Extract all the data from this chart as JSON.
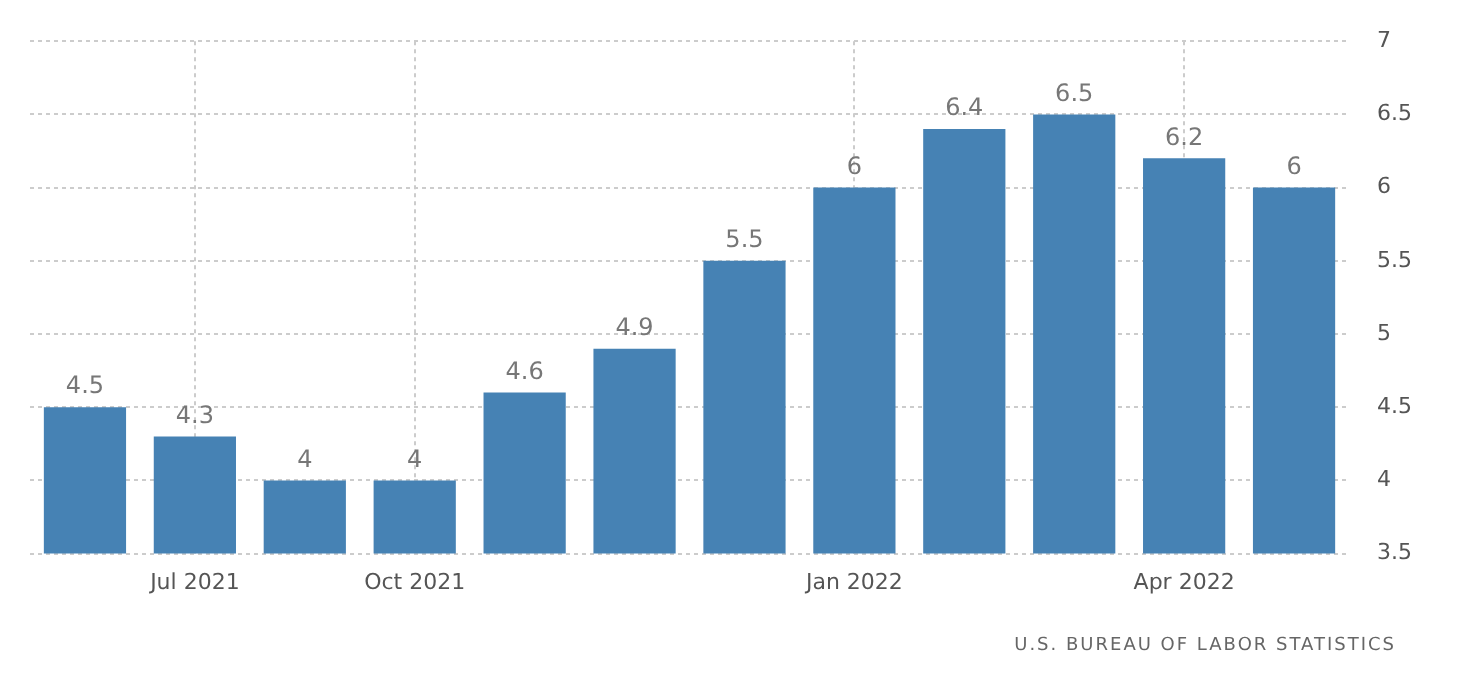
{
  "chart_data": {
    "type": "bar",
    "categories": [
      null,
      "Jul 2021",
      null,
      "Oct 2021",
      null,
      null,
      null,
      "Jan 2022",
      null,
      null,
      "Apr 2022",
      null
    ],
    "values": [
      4.5,
      4.3,
      4,
      4,
      4.6,
      4.9,
      5.5,
      6,
      6.4,
      6.5,
      6.2,
      6
    ],
    "color": "#4682b4",
    "ylim": [
      3.5,
      7
    ],
    "yticks": [
      3.5,
      4,
      4.5,
      5,
      5.5,
      6,
      6.5,
      7
    ],
    "grid": true,
    "data_labels": true,
    "annotations": [
      "U.S. BUREAU OF LABOR STATISTICS"
    ]
  }
}
